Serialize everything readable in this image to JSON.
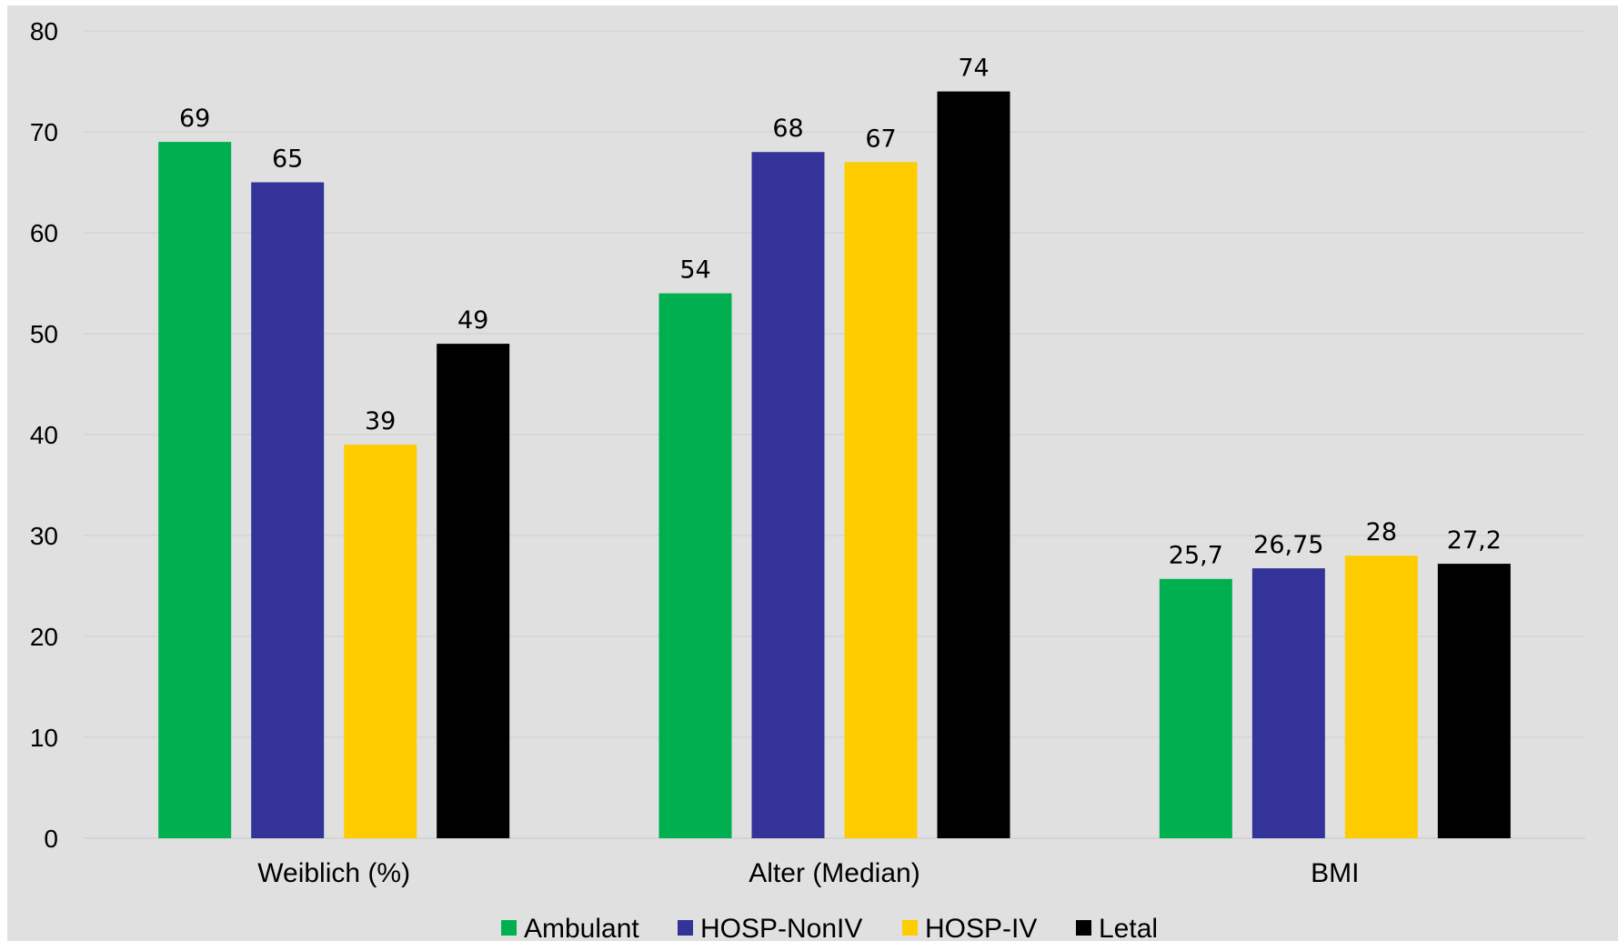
{
  "chart_data": {
    "type": "bar",
    "categories": [
      "Weiblich (%)",
      "Alter (Median)",
      "BMI"
    ],
    "series": [
      {
        "name": "Ambulant",
        "color": "#00b050",
        "values": [
          69,
          54,
          25.7
        ],
        "labels": [
          "69",
          "54",
          "25,7"
        ]
      },
      {
        "name": "HOSP-NonIV",
        "color": "#333399",
        "values": [
          65,
          68,
          26.75
        ],
        "labels": [
          "65",
          "68",
          "26,75"
        ]
      },
      {
        "name": "HOSP-IV",
        "color": "#ffcc00",
        "values": [
          39,
          67,
          28
        ],
        "labels": [
          "39",
          "67",
          "28"
        ]
      },
      {
        "name": "Letal",
        "color": "#000000",
        "values": [
          49,
          74,
          27.2
        ],
        "labels": [
          "49",
          "74",
          "27,2"
        ]
      }
    ],
    "ylim": [
      0,
      80
    ],
    "yticks": [
      "0",
      "10",
      "20",
      "30",
      "40",
      "50",
      "60",
      "70",
      "80"
    ],
    "grid": true,
    "legend_position": "bottom",
    "background": "#e0e0e0"
  }
}
